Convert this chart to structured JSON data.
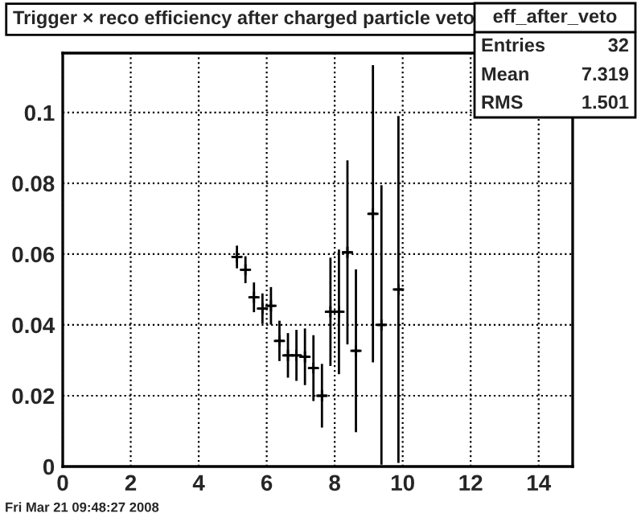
{
  "chart_data": {
    "type": "scatter",
    "title": "Trigger × reco efficiency after charged particle veto",
    "annotations": [
      "eff_after_veto",
      "Entries",
      "32",
      "Mean",
      "7.319",
      "RMS",
      "1.501",
      "Fri Mar 21 09:48:27 2008"
    ],
    "x": [
      5.125,
      5.375,
      5.625,
      5.875,
      6.125,
      6.375,
      6.625,
      6.875,
      7.125,
      7.375,
      7.625,
      7.875,
      8.125,
      8.375,
      8.625,
      9.125,
      9.375,
      9.875
    ],
    "series": [
      {
        "color": "#000000",
        "values": [
          0.0592,
          0.0556,
          0.0478,
          0.0446,
          0.0454,
          0.0355,
          0.0314,
          0.0314,
          0.031,
          0.0278,
          0.02,
          0.0437,
          0.0437,
          0.0605,
          0.0327,
          0.0714,
          0.04,
          0.05
        ],
        "errors": [
          0.0032,
          0.0038,
          0.0042,
          0.0043,
          0.0053,
          0.0057,
          0.0063,
          0.0072,
          0.008,
          0.0093,
          0.009,
          0.0153,
          0.0176,
          0.026,
          0.023,
          0.042,
          0.0395,
          0.049
        ],
        "xerrors": [
          0.125,
          0.125,
          0.125,
          0.125,
          0.125,
          0.125,
          0.125,
          0.125,
          0.125,
          0.125,
          0.125,
          0.125,
          0.125,
          0.125,
          0.125,
          0.125,
          0.125,
          0.125
        ]
      }
    ],
    "marker": "cross",
    "xlim": [
      0,
      15
    ],
    "xticks": [
      0,
      2,
      4,
      6,
      8,
      10,
      12,
      14
    ],
    "ylim": [
      0,
      0.1168
    ],
    "yticks": [
      {
        "value": 0,
        "label": "0"
      },
      0.02,
      0.04,
      0.06,
      0.08,
      0.1
    ],
    "grid": true
  }
}
